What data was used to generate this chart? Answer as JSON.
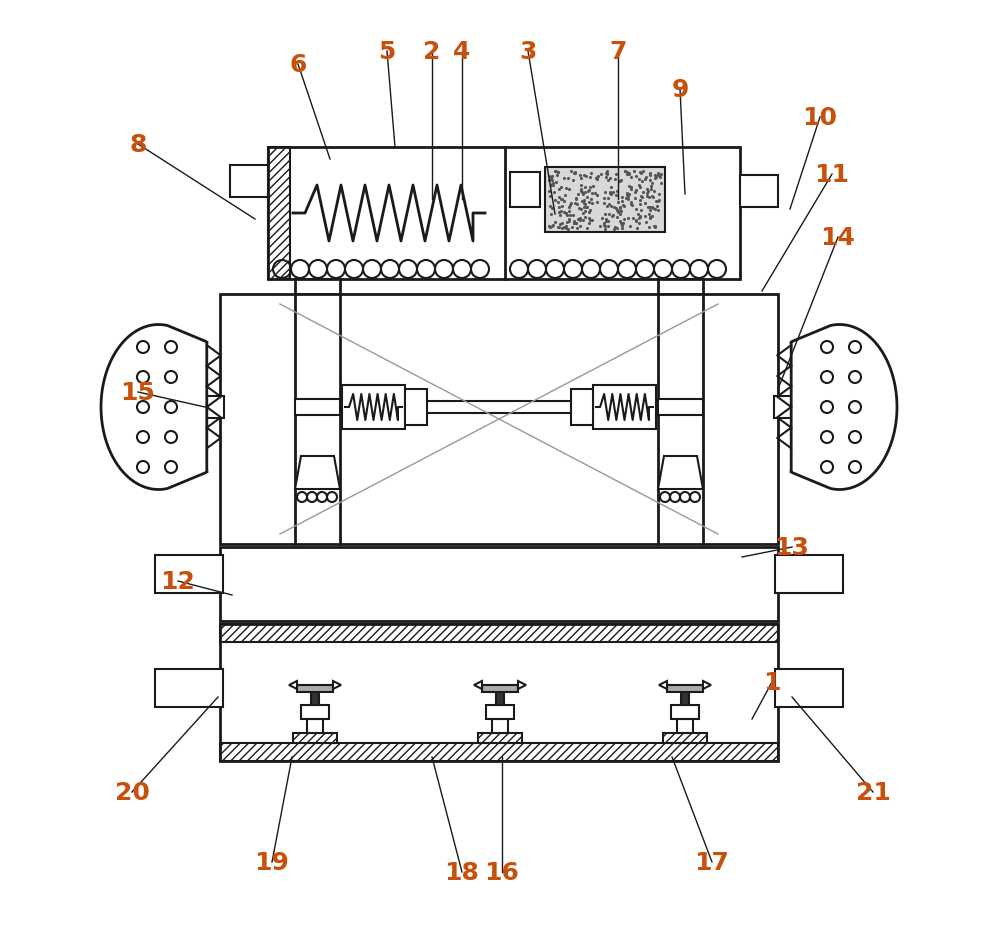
{
  "bg_color": "#ffffff",
  "line_color": "#1a1a1a",
  "lw": 1.5,
  "lw2": 2.0,
  "figsize": [
    10.0,
    9.28
  ],
  "dpi": 100,
  "annotations": [
    [
      "6",
      298,
      65,
      330,
      160
    ],
    [
      "5",
      387,
      52,
      395,
      148
    ],
    [
      "2",
      432,
      52,
      432,
      200
    ],
    [
      "4",
      462,
      52,
      462,
      200
    ],
    [
      "3",
      528,
      52,
      555,
      215
    ],
    [
      "7",
      618,
      52,
      618,
      200
    ],
    [
      "9",
      680,
      90,
      685,
      195
    ],
    [
      "8",
      138,
      145,
      255,
      220
    ],
    [
      "10",
      820,
      118,
      790,
      210
    ],
    [
      "11",
      832,
      175,
      762,
      292
    ],
    [
      "14",
      838,
      238,
      778,
      390
    ],
    [
      "15",
      138,
      393,
      205,
      408
    ],
    [
      "12",
      178,
      582,
      232,
      596
    ],
    [
      "13",
      792,
      548,
      742,
      558
    ],
    [
      "1",
      772,
      683,
      752,
      720
    ],
    [
      "20",
      132,
      793,
      218,
      698
    ],
    [
      "19",
      272,
      863,
      292,
      758
    ],
    [
      "18",
      462,
      873,
      432,
      758
    ],
    [
      "16",
      502,
      873,
      502,
      758
    ],
    [
      "17",
      712,
      863,
      672,
      758
    ],
    [
      "21",
      873,
      793,
      792,
      698
    ]
  ]
}
